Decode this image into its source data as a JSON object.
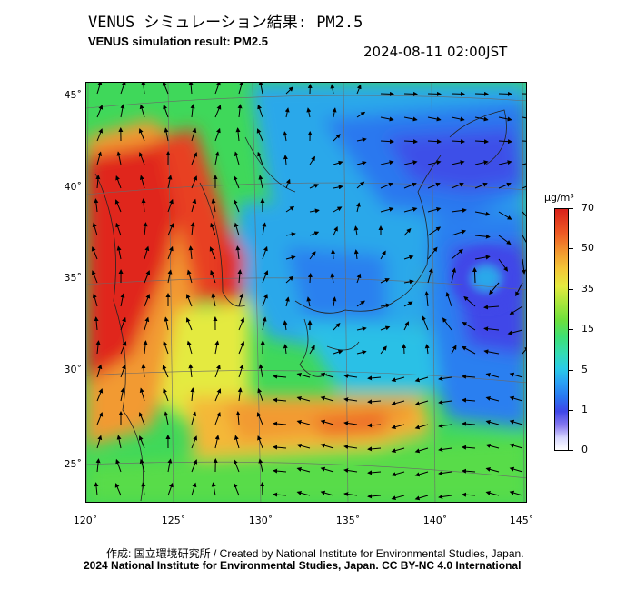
{
  "header": {
    "title_jp": "VENUS シミュレーション結果: PM2.5",
    "title_en": "VENUS simulation result: PM2.5",
    "timestamp": "2024-08-11 02:00JST"
  },
  "map": {
    "latitude_labels": [
      "45˚",
      "40˚",
      "35˚",
      "30˚",
      "25˚"
    ],
    "longitude_labels": [
      "120˚",
      "125˚",
      "130˚",
      "135˚",
      "140˚",
      "145˚"
    ],
    "colors": {
      "ocean_green": "#3fd85a",
      "clean_blue": "#2a7ff0",
      "polluted_red": "#e0261c",
      "moderate_orange": "#f39a2e"
    }
  },
  "colorbar": {
    "unit": "μg/m³",
    "ticks": [
      "70",
      "50",
      "35",
      "15",
      "5",
      "1",
      "0"
    ]
  },
  "footer": {
    "credit": "作成: 国立環境研究所 / Created by National Institute for Environmental Studies, Japan.",
    "copyright": "2024 National Institute for Environmental Studies, Japan. CC BY-NC 4.0 International"
  }
}
